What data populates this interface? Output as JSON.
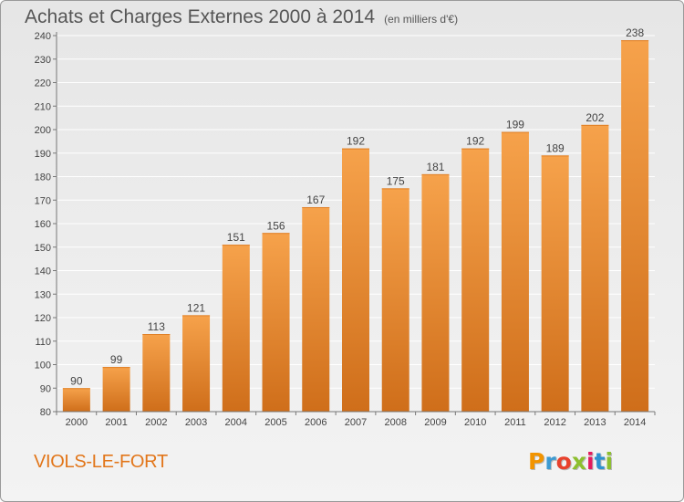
{
  "header": {
    "title": "Achats et Charges Externes 2000 à 2014",
    "unit": "(en milliers d'€)"
  },
  "footer": {
    "commune": "VIOLS-LE-FORT",
    "logo_text": "Proxiti",
    "logo_colors": [
      "#f29400",
      "#3d9ad1",
      "#e8412c",
      "#8dbf2e",
      "#e31b5c",
      "#2e92d0",
      "#8dbf2e"
    ]
  },
  "colors": {
    "bar_light": "#f6a24b",
    "bar_dark": "#cf6e1a",
    "accent": "#e2761a"
  },
  "chart_data": {
    "type": "bar",
    "title": "Achats et Charges Externes 2000 à 2014",
    "subtitle": "(en milliers d'€)",
    "categories": [
      "2000",
      "2001",
      "2002",
      "2003",
      "2004",
      "2005",
      "2006",
      "2007",
      "2008",
      "2009",
      "2010",
      "2011",
      "2012",
      "2013",
      "2014"
    ],
    "values": [
      90,
      99,
      113,
      121,
      151,
      156,
      167,
      192,
      175,
      181,
      192,
      199,
      189,
      202,
      238
    ],
    "ylim": [
      80,
      240
    ],
    "yticks": [
      80,
      90,
      100,
      110,
      120,
      130,
      140,
      150,
      160,
      170,
      180,
      190,
      200,
      210,
      220,
      230,
      240
    ],
    "grid": true,
    "data_labels": true
  }
}
